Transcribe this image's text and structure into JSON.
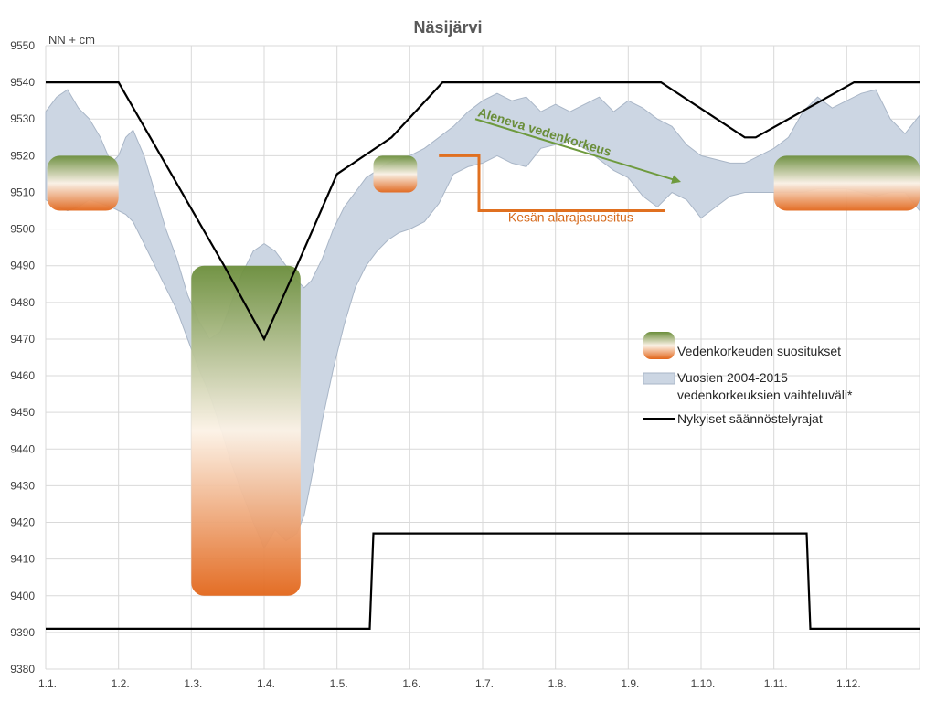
{
  "chart_data": {
    "type": "area",
    "title": "Näsijärvi",
    "ylabel": "NN + cm",
    "xlabel": "",
    "ylim": [
      9380,
      9550
    ],
    "yticks": [
      9380,
      9390,
      9400,
      9410,
      9420,
      9430,
      9440,
      9450,
      9460,
      9470,
      9480,
      9490,
      9500,
      9510,
      9520,
      9530,
      9540,
      9550
    ],
    "xlim": [
      0,
      12
    ],
    "month_labels": [
      "1.1.",
      "1.2.",
      "1.3.",
      "1.4.",
      "1.5.",
      "1.6.",
      "1.7.",
      "1.8.",
      "1.9.",
      "1.10.",
      "1.11.",
      "1.12."
    ],
    "grid": true,
    "legend_position": "right",
    "legend": {
      "recommendations": "Vedenkorkeuden  suositukset",
      "range_line1": "Vuosien 2004-2015",
      "range_line2": "vedenkorkeuksien vaihteluväli*",
      "limits": "Nykyiset säännöstelyrajat"
    },
    "series": [
      {
        "name": "Vuosien 2004-2015 vedenkorkeuksien vaihteluväli*",
        "kind": "range_band",
        "x": [
          0.0,
          0.15,
          0.3,
          0.45,
          0.6,
          0.75,
          0.9,
          1.0,
          1.1,
          1.2,
          1.35,
          1.5,
          1.65,
          1.8,
          1.95,
          2.1,
          2.25,
          2.4,
          2.55,
          2.7,
          2.85,
          3.0,
          3.15,
          3.3,
          3.45,
          3.55,
          3.65,
          3.8,
          3.95,
          4.1,
          4.25,
          4.4,
          4.55,
          4.7,
          4.85,
          5.0,
          5.2,
          5.4,
          5.6,
          5.8,
          6.0,
          6.2,
          6.4,
          6.6,
          6.8,
          7.0,
          7.2,
          7.4,
          7.6,
          7.8,
          8.0,
          8.2,
          8.4,
          8.6,
          8.8,
          9.0,
          9.2,
          9.4,
          9.6,
          9.8,
          10.0,
          10.2,
          10.4,
          10.6,
          10.8,
          11.0,
          11.2,
          11.4,
          11.6,
          11.8,
          12.0
        ],
        "high": [
          9532,
          9536,
          9538,
          9533,
          9530,
          9525,
          9518,
          9520,
          9525,
          9527,
          9520,
          9510,
          9500,
          9492,
          9482,
          9475,
          9470,
          9472,
          9480,
          9488,
          9494,
          9496,
          9494,
          9490,
          9486,
          9484,
          9486,
          9492,
          9500,
          9506,
          9510,
          9514,
          9516,
          9518,
          9519,
          9520,
          9522,
          9525,
          9528,
          9532,
          9535,
          9537,
          9535,
          9536,
          9532,
          9534,
          9532,
          9534,
          9536,
          9532,
          9535,
          9533,
          9530,
          9528,
          9523,
          9520,
          9519,
          9518,
          9518,
          9520,
          9522,
          9525,
          9532,
          9536,
          9533,
          9535,
          9537,
          9538,
          9530,
          9526,
          9531
        ],
        "low": [
          9508,
          9506,
          9505,
          9506,
          9508,
          9507,
          9506,
          9505,
          9504,
          9502,
          9496,
          9490,
          9484,
          9478,
          9470,
          9462,
          9455,
          9446,
          9436,
          9428,
          9420,
          9413,
          9418,
          9415,
          9417,
          9422,
          9432,
          9448,
          9462,
          9474,
          9484,
          9490,
          9494,
          9497,
          9499,
          9500,
          9502,
          9507,
          9515,
          9517,
          9518,
          9520,
          9518,
          9517,
          9522,
          9523,
          9524,
          9522,
          9519,
          9516,
          9514,
          9509,
          9506,
          9510,
          9508,
          9503,
          9506,
          9509,
          9510,
          9510,
          9510,
          9510,
          9510,
          9511,
          9511,
          9511,
          9510,
          9509,
          9510,
          9510,
          9505
        ]
      },
      {
        "name": "Nykyiset säännöstelyrajat (yläraja)",
        "kind": "line",
        "x": [
          0,
          1.0,
          2.45,
          3.0,
          3.45,
          4.0,
          4.75,
          5.45,
          7.25,
          8.45,
          9.6,
          9.75,
          11.1,
          12.0
        ],
        "y": [
          9540,
          9540,
          9490,
          9470,
          9490,
          9515,
          9525,
          9540,
          9540,
          9540,
          9525,
          9525,
          9540,
          9540
        ]
      },
      {
        "name": "Nykyiset säännöstelyrajat (alaraja)",
        "kind": "line",
        "x": [
          0,
          4.45,
          4.5,
          10.45,
          10.5,
          12.0
        ],
        "y": [
          9391,
          9391,
          9417,
          9417,
          9391,
          9391
        ]
      },
      {
        "name": "Kesän alarajasuositus",
        "kind": "line",
        "x": [
          5.4,
          5.95,
          5.95,
          8.5
        ],
        "y": [
          9520,
          9520,
          9505,
          9505
        ]
      }
    ],
    "recommendation_boxes": [
      {
        "x0": 0.02,
        "x1": 1.0,
        "top": 9520,
        "bottom": 9505
      },
      {
        "x0": 2.0,
        "x1": 3.5,
        "top": 9490,
        "bottom": 9400
      },
      {
        "x0": 4.5,
        "x1": 5.1,
        "top": 9520,
        "bottom": 9510
      },
      {
        "x0": 10.0,
        "x1": 12.0,
        "top": 9520,
        "bottom": 9505
      }
    ],
    "annotations": [
      {
        "text": "Aleneva vedenkorkeus",
        "arrow_from": [
          5.9,
          9530
        ],
        "arrow_to": [
          8.7,
          9513
        ]
      },
      {
        "text": "Kesän alarajasuositus",
        "anchor": [
          6.35,
          9502
        ]
      }
    ],
    "colors": {
      "band_fill": "#ccd6e3",
      "band_edge": "#a9b6c7",
      "limit_line": "#000000",
      "summer_line": "#e07020",
      "green": "#6b8e3b",
      "orange": "#e2661a",
      "mid": "#fcf2e6",
      "grid": "#d9d9d9",
      "arrow": "#6e9a3e"
    }
  }
}
